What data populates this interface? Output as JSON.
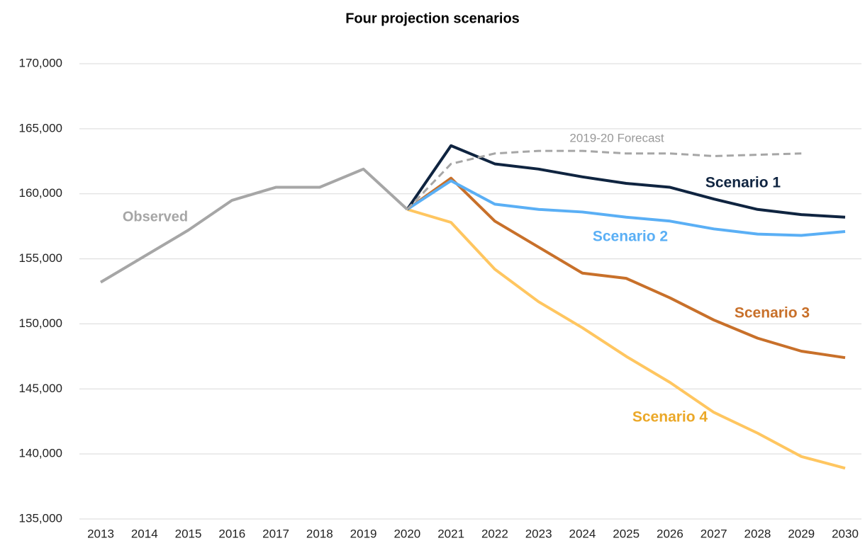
{
  "chart_data": {
    "type": "line",
    "title": "Four projection scenarios",
    "categories": [
      "2013",
      "2014",
      "2015",
      "2016",
      "2017",
      "2018",
      "2019",
      "2020",
      "2021",
      "2022",
      "2023",
      "2024",
      "2025",
      "2026",
      "2027",
      "2028",
      "2029",
      "2030"
    ],
    "ylim": [
      135000,
      170000
    ],
    "yticks": [
      {
        "value": 135000,
        "label": "135,000"
      },
      {
        "value": 140000,
        "label": "140,000"
      },
      {
        "value": 145000,
        "label": "145,000"
      },
      {
        "value": 150000,
        "label": "150,000"
      },
      {
        "value": 155000,
        "label": "155,000"
      },
      {
        "value": 160000,
        "label": "160,000"
      },
      {
        "value": 165000,
        "label": "165,000"
      },
      {
        "value": 170000,
        "label": "170,000"
      }
    ],
    "grid": true,
    "series": [
      {
        "name": "Observed",
        "color": "#a6a6a6",
        "values": [
          153200,
          155200,
          157200,
          159500,
          160500,
          160500,
          161900,
          158800,
          null,
          null,
          null,
          null,
          null,
          null,
          null,
          null,
          null,
          null
        ]
      },
      {
        "name": "2019-20 Forecast",
        "color": "#a6a6a6",
        "dashed": true,
        "values": [
          null,
          null,
          null,
          null,
          null,
          null,
          null,
          158800,
          162300,
          163100,
          163300,
          163300,
          163100,
          163100,
          162900,
          163000,
          163100,
          null
        ]
      },
      {
        "name": "Scenario 1",
        "color": "#0f2440",
        "values": [
          null,
          null,
          null,
          null,
          null,
          null,
          null,
          158800,
          163700,
          162300,
          161900,
          161300,
          160800,
          160500,
          159600,
          158800,
          158400,
          158200
        ]
      },
      {
        "name": "Scenario 2",
        "color": "#5aaff5",
        "values": [
          null,
          null,
          null,
          null,
          null,
          null,
          null,
          158800,
          161000,
          159200,
          158800,
          158600,
          158200,
          157900,
          157300,
          156900,
          156800,
          157100
        ]
      },
      {
        "name": "Scenario 3",
        "color": "#c8702a",
        "values": [
          null,
          null,
          null,
          null,
          null,
          null,
          null,
          158800,
          161200,
          157900,
          155900,
          153900,
          153500,
          152000,
          150300,
          148900,
          147900,
          147400
        ]
      },
      {
        "name": "Scenario 4",
        "color": "#ffc660",
        "values": [
          null,
          null,
          null,
          null,
          null,
          null,
          null,
          158800,
          157800,
          154200,
          151700,
          149700,
          147500,
          145500,
          143200,
          141600,
          139800,
          138900
        ]
      }
    ]
  }
}
